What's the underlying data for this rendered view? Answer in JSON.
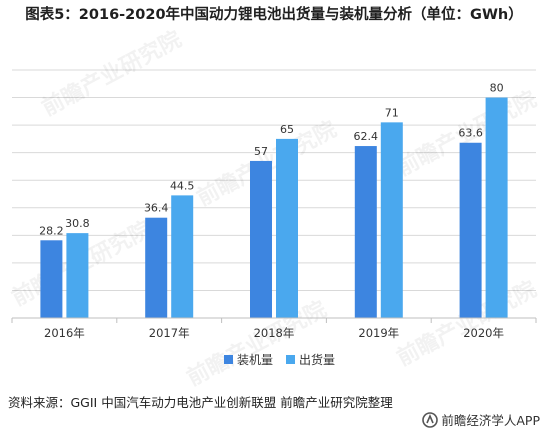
{
  "title": "图表5：2016-2020年中国动力锂电池出货量与装机量分析（单位：GWh）",
  "source": "资料来源：GGII 中国汽车动力电池产业创新联盟 前瞻产业研究院整理",
  "brand": "前瞻经济学人APP",
  "watermark": "前瞻产业研究院",
  "colors": {
    "series1": "#3d85e0",
    "series2": "#4aa8ee",
    "grid": "#d9d9d9",
    "axis": "#bfbfbf",
    "text": "#333333"
  },
  "chart_data": {
    "type": "bar",
    "title": "图表5：2016-2020年中国动力锂电池出货量与装机量分析（单位：GWh）",
    "categories": [
      "2016年",
      "2017年",
      "2018年",
      "2019年",
      "2020年"
    ],
    "series": [
      {
        "name": "装机量",
        "values": [
          28.2,
          36.4,
          57,
          62.4,
          63.6
        ]
      },
      {
        "name": "出货量",
        "values": [
          30.8,
          44.5,
          65,
          71,
          80
        ]
      }
    ],
    "ylim": [
      0,
      90
    ],
    "grid": true,
    "legend": "bottom"
  }
}
